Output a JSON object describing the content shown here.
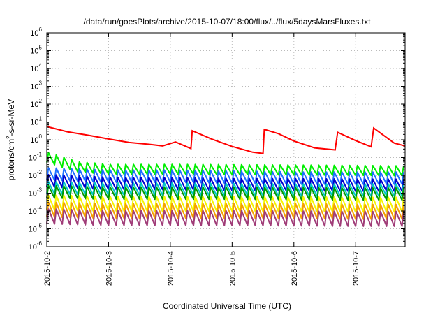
{
  "chart_data": {
    "type": "line",
    "title": "/data/run/goesPlots/archive/2015-10-07/18:00/flux/../flux/5daysMarsFluxes.txt",
    "xlabel": "Coordinated Universal Time (UTC)",
    "ylabel_main": "protons/cm",
    "ylabel_sup": "2",
    "ylabel_rest": "-s-sr-MeV",
    "y_scale": "log",
    "ylim": [
      1e-06,
      1000000.0
    ],
    "xlim": [
      "2015-10-02T00:00",
      "2015-10-07T19:12"
    ],
    "grid": true,
    "x_ticks": [
      {
        "value": "2015-10-02T00:00",
        "label": "2015-10-2"
      },
      {
        "value": "2015-10-03T00:00",
        "label": "2015-10-3"
      },
      {
        "value": "2015-10-04T00:00",
        "label": "2015-10-4"
      },
      {
        "value": "2015-10-05T00:00",
        "label": "2015-10-5"
      },
      {
        "value": "2015-10-06T00:00",
        "label": "2015-10-6"
      },
      {
        "value": "2015-10-07T00:00",
        "label": "2015-10-7"
      }
    ],
    "y_ticks": [
      {
        "value": 1e-06,
        "base": "10",
        "exp": "-6"
      },
      {
        "value": 1e-05,
        "base": "10",
        "exp": "-5"
      },
      {
        "value": 0.0001,
        "base": "10",
        "exp": "-4"
      },
      {
        "value": 0.001,
        "base": "10",
        "exp": "-3"
      },
      {
        "value": 0.01,
        "base": "10",
        "exp": "-2"
      },
      {
        "value": 0.1,
        "base": "10",
        "exp": "-1"
      },
      {
        "value": 1,
        "base": "10",
        "exp": "0"
      },
      {
        "value": 10,
        "base": "10",
        "exp": "1"
      },
      {
        "value": 100,
        "base": "10",
        "exp": "2"
      },
      {
        "value": 1000,
        "base": "10",
        "exp": "3"
      },
      {
        "value": 10000,
        "base": "10",
        "exp": "4"
      },
      {
        "value": 100000,
        "base": "10",
        "exp": "5"
      },
      {
        "value": 1000000,
        "base": "10",
        "exp": "6"
      }
    ],
    "series": [
      {
        "color": "#ff0000",
        "values": [
          [
            "2015-10-02T00:00",
            5.5
          ],
          [
            "2015-10-02T08:00",
            2.8
          ],
          [
            "2015-10-02T16:00",
            1.8
          ],
          [
            "2015-10-03T00:00",
            1.1
          ],
          [
            "2015-10-03T08:00",
            0.7
          ],
          [
            "2015-10-03T16:00",
            0.55
          ],
          [
            "2015-10-03T21:00",
            0.45
          ],
          [
            "2015-10-04T02:00",
            0.75
          ],
          [
            "2015-10-04T08:00",
            0.32
          ],
          [
            "2015-10-04T08:30",
            3.2
          ],
          [
            "2015-10-04T16:00",
            1.1
          ],
          [
            "2015-10-05T00:00",
            0.42
          ],
          [
            "2015-10-05T08:00",
            0.2
          ],
          [
            "2015-10-05T12:00",
            0.17
          ],
          [
            "2015-10-05T12:30",
            3.8
          ],
          [
            "2015-10-05T18:00",
            2.2
          ],
          [
            "2015-10-06T00:00",
            0.85
          ],
          [
            "2015-10-06T08:00",
            0.35
          ],
          [
            "2015-10-06T16:00",
            0.27
          ],
          [
            "2015-10-06T17:00",
            2.6
          ],
          [
            "2015-10-07T00:00",
            0.9
          ],
          [
            "2015-10-07T06:00",
            0.4
          ],
          [
            "2015-10-07T07:00",
            4.5
          ],
          [
            "2015-10-07T15:00",
            0.65
          ],
          [
            "2015-10-07T19:12",
            0.45
          ]
        ]
      },
      {
        "color": "#00ee00",
        "values": [
          [
            "2015-10-02T00:00",
            0.1
          ],
          [
            "2015-10-02T12:00",
            0.03
          ],
          [
            "2015-10-03T00:00",
            0.022
          ],
          [
            "2015-10-04T00:00",
            0.022
          ],
          [
            "2015-10-05T00:00",
            0.021
          ],
          [
            "2015-10-06T00:00",
            0.02
          ],
          [
            "2015-10-07T00:00",
            0.019
          ],
          [
            "2015-10-07T19:12",
            0.018
          ]
        ]
      },
      {
        "color": "#1e70ff",
        "values": [
          [
            "2015-10-02T00:00",
            0.012
          ],
          [
            "2015-10-03T00:00",
            0.009
          ],
          [
            "2015-10-04T00:00",
            0.009
          ],
          [
            "2015-10-05T00:00",
            0.008
          ],
          [
            "2015-10-06T00:00",
            0.007
          ],
          [
            "2015-10-07T00:00",
            0.007
          ],
          [
            "2015-10-07T19:12",
            0.007
          ]
        ]
      },
      {
        "color": "#0000cc",
        "values": [
          [
            "2015-10-02T00:00",
            0.005
          ],
          [
            "2015-10-03T00:00",
            0.0035
          ],
          [
            "2015-10-04T00:00",
            0.0035
          ],
          [
            "2015-10-05T00:00",
            0.003
          ],
          [
            "2015-10-06T00:00",
            0.003
          ],
          [
            "2015-10-07T00:00",
            0.0028
          ],
          [
            "2015-10-07T19:12",
            0.0028
          ]
        ]
      },
      {
        "color": "#00c8c8",
        "values": [
          [
            "2015-10-02T00:00",
            0.002
          ],
          [
            "2015-10-03T00:00",
            0.0017
          ],
          [
            "2015-10-04T00:00",
            0.0017
          ],
          [
            "2015-10-05T00:00",
            0.0016
          ],
          [
            "2015-10-06T00:00",
            0.0015
          ],
          [
            "2015-10-07T00:00",
            0.0015
          ],
          [
            "2015-10-07T19:12",
            0.0015
          ]
        ]
      },
      {
        "color": "#009b00",
        "values": [
          [
            "2015-10-02T00:00",
            0.0012
          ],
          [
            "2015-10-03T00:00",
            0.001
          ],
          [
            "2015-10-04T00:00",
            0.001
          ],
          [
            "2015-10-05T00:00",
            0.001
          ],
          [
            "2015-10-06T00:00",
            0.00095
          ],
          [
            "2015-10-07T00:00",
            0.0009
          ],
          [
            "2015-10-07T19:12",
            0.0009
          ]
        ]
      },
      {
        "color": "#f5f500",
        "values": [
          [
            "2015-10-02T00:00",
            0.0003
          ],
          [
            "2015-10-03T00:00",
            0.00025
          ],
          [
            "2015-10-04T00:00",
            0.00025
          ],
          [
            "2015-10-05T00:00",
            0.00025
          ],
          [
            "2015-10-06T00:00",
            0.00024
          ],
          [
            "2015-10-07T00:00",
            0.00023
          ],
          [
            "2015-10-07T19:12",
            0.00023
          ]
        ]
      },
      {
        "color": "#f5a000",
        "values": [
          [
            "2015-10-02T00:00",
            0.00012
          ],
          [
            "2015-10-03T00:00",
            0.0001
          ],
          [
            "2015-10-04T00:00",
            0.0001
          ],
          [
            "2015-10-05T00:00",
            0.0001
          ],
          [
            "2015-10-06T00:00",
            0.0001
          ],
          [
            "2015-10-07T00:00",
            9e-05
          ],
          [
            "2015-10-07T19:12",
            9e-05
          ]
        ]
      },
      {
        "color": "#a03c78",
        "values": [
          [
            "2015-10-02T00:00",
            5e-05
          ],
          [
            "2015-10-03T00:00",
            4e-05
          ],
          [
            "2015-10-04T00:00",
            4e-05
          ],
          [
            "2015-10-05T00:00",
            4e-05
          ],
          [
            "2015-10-06T00:00",
            3.8e-05
          ],
          [
            "2015-10-07T00:00",
            3.6e-05
          ],
          [
            "2015-10-07T19:12",
            3.6e-05
          ]
        ]
      }
    ]
  }
}
